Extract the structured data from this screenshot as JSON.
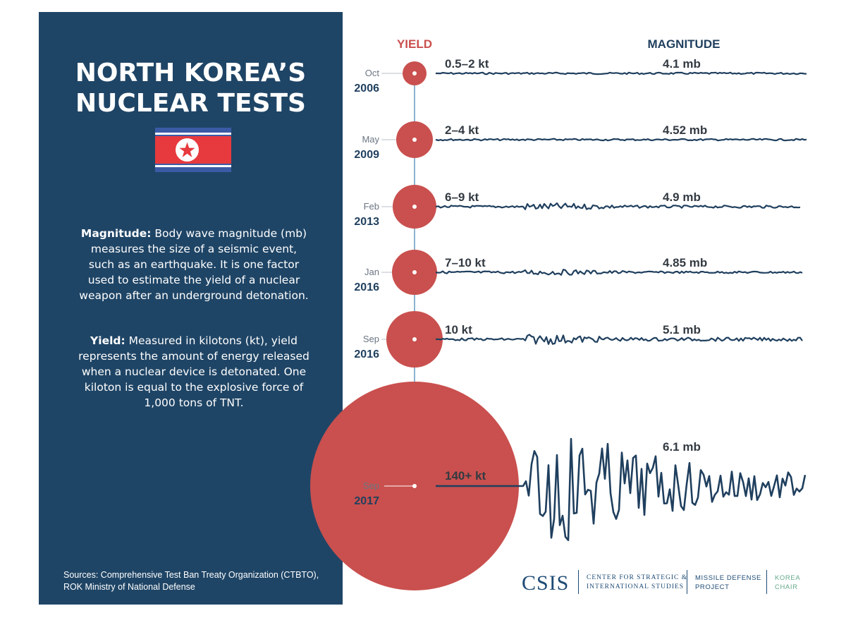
{
  "title": {
    "line1": "NORTH KOREA’S",
    "line2": "NUCLEAR TESTS"
  },
  "definitions": {
    "magnitude_term": "Magnitude:",
    "magnitude_text": "Body wave magnitude (mb) measures the size of a seismic event, such as an earthquake. It is one factor used to estimate the yield of a nuclear weapon after an underground detonation.",
    "yield_term": "Yield:",
    "yield_text": "Measured in kilotons (kt), yield represents the amount of energy released when a nuclear device is detonated. One kiloton is equal to the explosive force of 1,000 tons of TNT."
  },
  "sources": "Sources: Comprehensive Test Ban Treaty Organization (CTBTO), ROK Ministry of National Defense",
  "column_headers": {
    "yield": "YIELD",
    "magnitude": "MAGNITUDE"
  },
  "colors": {
    "panel": "#1f4566",
    "yield": "#c9504e",
    "magnitude": "#1f3f5e",
    "axis": "#8cb3cf"
  },
  "chart_data": {
    "type": "timeline",
    "tests": [
      {
        "month": "Oct",
        "year": "2006",
        "yield": "0.5–2 kt",
        "magnitude": "4.1 mb",
        "magnitude_value": 4.1
      },
      {
        "month": "May",
        "year": "2009",
        "yield": "2–4 kt",
        "magnitude": "4.52 mb",
        "magnitude_value": 4.52
      },
      {
        "month": "Feb",
        "year": "2013",
        "yield": "6–9 kt",
        "magnitude": "4.9 mb",
        "magnitude_value": 4.9
      },
      {
        "month": "Jan",
        "year": "2016",
        "yield": "7–10 kt",
        "magnitude": "4.85 mb",
        "magnitude_value": 4.85
      },
      {
        "month": "Sep",
        "year": "2016",
        "yield": "10 kt",
        "magnitude": "5.1 mb",
        "magnitude_value": 5.1
      },
      {
        "month": "Sep",
        "year": "2017",
        "yield": "140+ kt",
        "magnitude": "6.1 mb",
        "magnitude_value": 6.1
      }
    ]
  },
  "logo": {
    "csis": "CSIS",
    "center_line1": "CENTER FOR STRATEGIC &",
    "center_line2": "INTERNATIONAL STUDIES",
    "mdp_line1": "MISSILE DEFENSE",
    "mdp_line2": "PROJECT",
    "korea_line1": "KOREA",
    "korea_line2": "CHAIR"
  },
  "icons": [
    "north-korea-flag-icon"
  ]
}
